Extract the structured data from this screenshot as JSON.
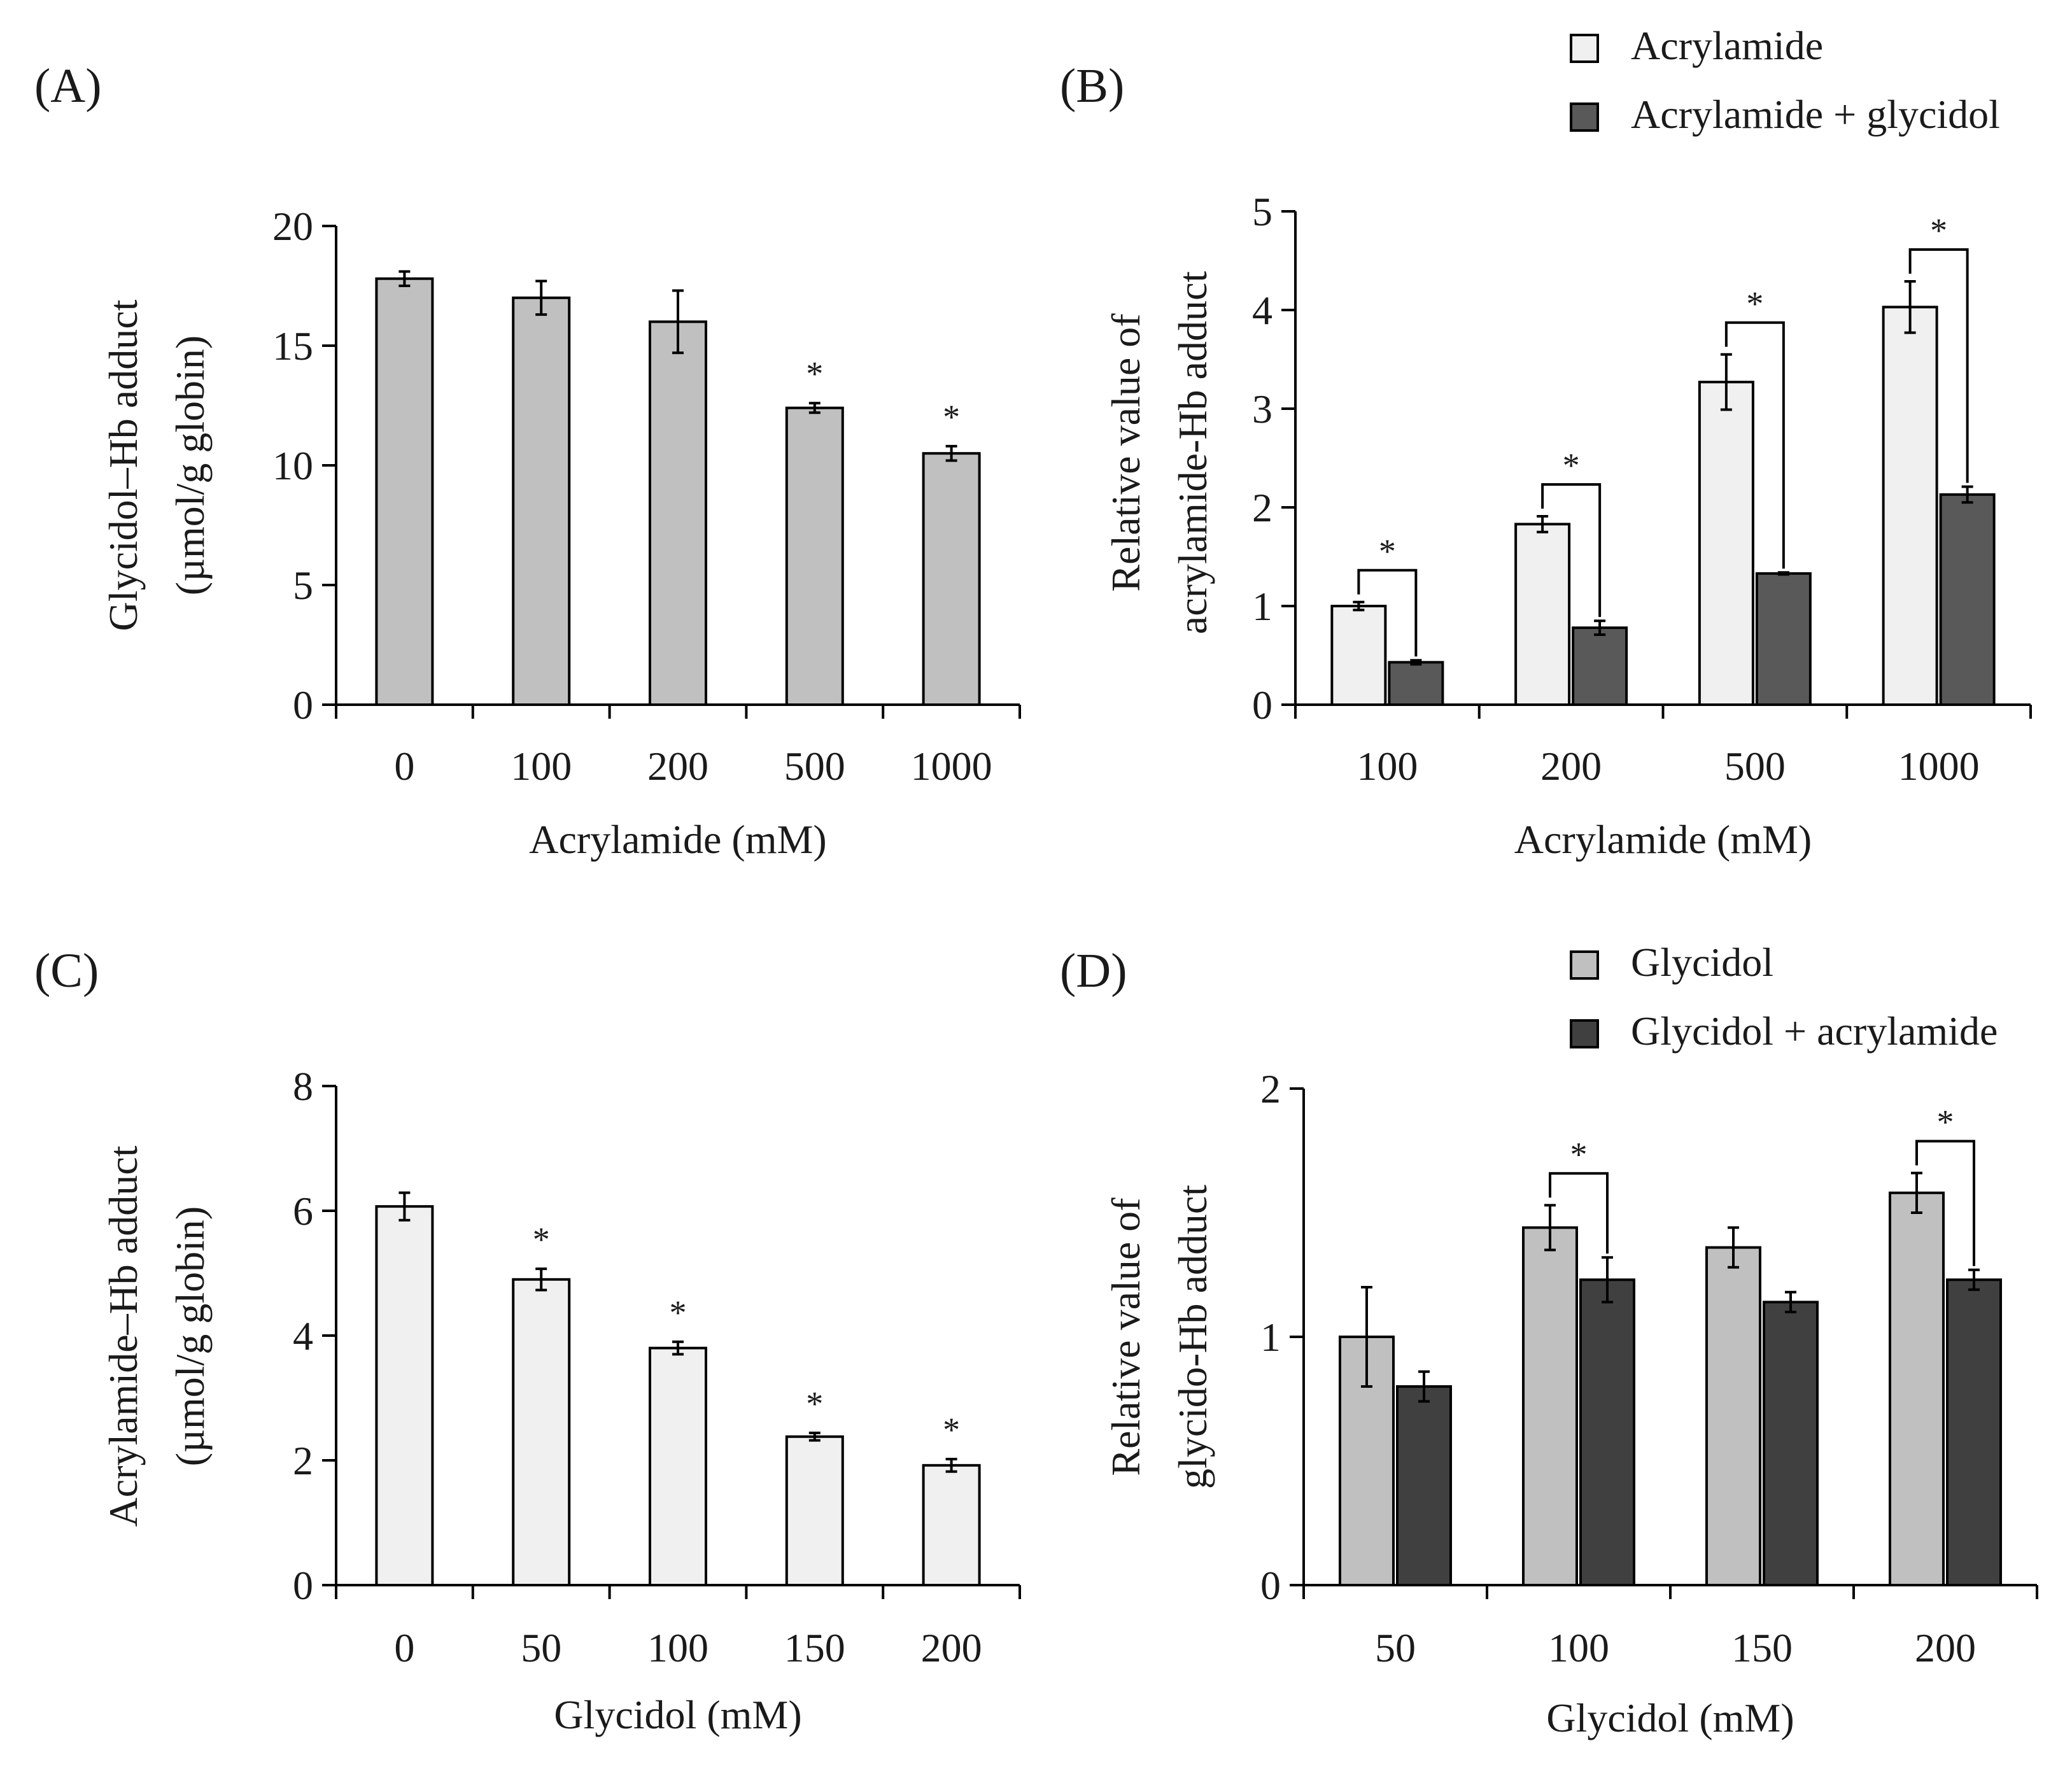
{
  "chart_data": [
    {
      "panel": "(A)",
      "type": "bar",
      "xlabel": "Acrylamide (mM)",
      "ylabel": [
        "Glycidol–Hb adduct",
        "(µmol/g globin)"
      ],
      "ylim": [
        0,
        20
      ],
      "yticks": [
        "0",
        "5",
        "10",
        "15",
        "20"
      ],
      "categories": [
        "0",
        "100",
        "200",
        "500",
        "1000"
      ],
      "legend": null,
      "series": [
        {
          "name": "Glycidol–Hb adduct",
          "color": "#c0c0c0",
          "values": [
            17.8,
            17.0,
            16.0,
            12.4,
            10.5
          ],
          "errors": [
            0.3,
            0.7,
            1.3,
            0.2,
            0.3
          ]
        }
      ],
      "significance": [
        {
          "category": "500",
          "label": "*"
        },
        {
          "category": "1000",
          "label": "*"
        }
      ]
    },
    {
      "panel": "(B)",
      "type": "bar",
      "xlabel": "Acrylamide (mM)",
      "ylabel": [
        "Relative value of",
        "acrylamide-Hb adduct"
      ],
      "ylim": [
        0,
        5
      ],
      "yticks": [
        "0",
        "1",
        "2",
        "3",
        "4",
        "5"
      ],
      "categories": [
        "100",
        "200",
        "500",
        "1000"
      ],
      "legend": "top-right",
      "series": [
        {
          "name": "Acrylamide",
          "color": "#f0f0f0",
          "values": [
            1.0,
            1.83,
            3.27,
            4.03
          ],
          "errors": [
            0.04,
            0.08,
            0.28,
            0.26
          ]
        },
        {
          "name": "Acrylamide + glycidol",
          "color": "#595959",
          "values": [
            0.43,
            0.78,
            1.33,
            2.13
          ],
          "errors": [
            0.02,
            0.07,
            0.01,
            0.08
          ]
        }
      ],
      "significance": [
        {
          "category": "100",
          "label": "*"
        },
        {
          "category": "200",
          "label": "*"
        },
        {
          "category": "500",
          "label": "*"
        },
        {
          "category": "1000",
          "label": "*"
        }
      ]
    },
    {
      "panel": "(C)",
      "type": "bar",
      "xlabel": "Glycidol (mM)",
      "ylabel": [
        "Acrylamide–Hb adduct",
        "(µmol/g globin)"
      ],
      "ylim": [
        0,
        8
      ],
      "yticks": [
        "0",
        "2",
        "4",
        "6",
        "8"
      ],
      "categories": [
        "0",
        "50",
        "100",
        "150",
        "200"
      ],
      "legend": null,
      "series": [
        {
          "name": "Acrylamide–Hb adduct",
          "color": "#f0f0f0",
          "values": [
            6.07,
            4.9,
            3.8,
            2.38,
            1.92
          ],
          "errors": [
            0.22,
            0.17,
            0.1,
            0.06,
            0.1
          ]
        }
      ],
      "significance": [
        {
          "category": "50",
          "label": "*"
        },
        {
          "category": "100",
          "label": "*"
        },
        {
          "category": "150",
          "label": "*"
        },
        {
          "category": "200",
          "label": "*"
        }
      ]
    },
    {
      "panel": "(D)",
      "type": "bar",
      "xlabel": "Glycidol (mM)",
      "ylabel": [
        "Relative value of",
        "glycido-Hb adduct"
      ],
      "ylim": [
        0,
        2
      ],
      "yticks": [
        "0",
        "1",
        "2"
      ],
      "categories": [
        "50",
        "100",
        "150",
        "200"
      ],
      "legend": "top-right",
      "series": [
        {
          "name": "Glycidol",
          "color": "#c0c0c0",
          "values": [
            1.0,
            1.44,
            1.36,
            1.58
          ],
          "errors": [
            0.2,
            0.09,
            0.08,
            0.08
          ]
        },
        {
          "name": "Glycidol + acrylamide",
          "color": "#404040",
          "values": [
            0.8,
            1.23,
            1.14,
            1.23
          ],
          "errors": [
            0.06,
            0.09,
            0.04,
            0.04
          ]
        }
      ],
      "significance": [
        {
          "category": "100",
          "label": "*"
        },
        {
          "category": "200",
          "label": "*"
        }
      ]
    }
  ]
}
